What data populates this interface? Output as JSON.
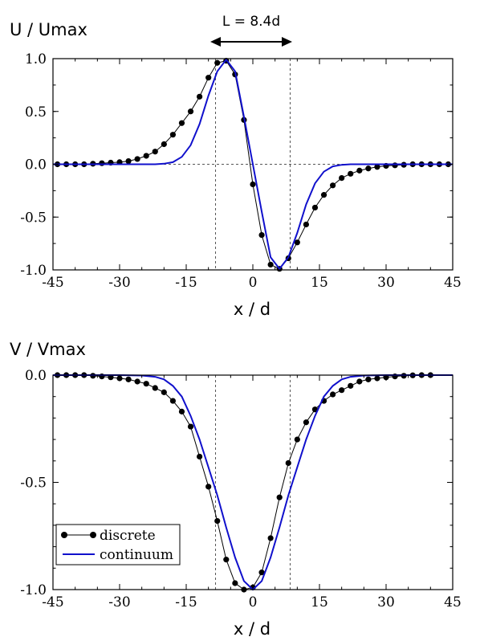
{
  "chart_data": [
    {
      "type": "line",
      "ylabel": "U / Umax",
      "xlabel": "x / d",
      "xlim": [
        -45,
        45
      ],
      "ylim": [
        -1.0,
        1.0
      ],
      "xticks": [
        "-45",
        "-30",
        "-15",
        "0",
        "15",
        "30",
        "45"
      ],
      "yticks": [
        "1.0",
        "0.5",
        "0.0",
        "-0.5",
        "-1.0"
      ],
      "annotation": "L = 8.4d",
      "dashed_verticals": [
        -8.4,
        8.4
      ],
      "zero_line": true,
      "series": [
        {
          "name": "discrete",
          "color": "#000000",
          "marker": "circle",
          "x": [
            -44,
            -42,
            -40,
            -38,
            -36,
            -34,
            -32,
            -30,
            -28,
            -26,
            -24,
            -22,
            -20,
            -18,
            -16,
            -14,
            -12,
            -10,
            -8,
            -6,
            -4,
            -2,
            0,
            2,
            4,
            6,
            8,
            10,
            12,
            14,
            16,
            18,
            20,
            22,
            24,
            26,
            28,
            30,
            32,
            34,
            36,
            38,
            40,
            42,
            44
          ],
          "y": [
            0.0,
            0.0,
            0.0,
            0.0,
            0.005,
            0.01,
            0.015,
            0.02,
            0.03,
            0.05,
            0.08,
            0.12,
            0.19,
            0.28,
            0.39,
            0.5,
            0.64,
            0.82,
            0.96,
            0.98,
            0.85,
            0.42,
            -0.19,
            -0.67,
            -0.95,
            -0.99,
            -0.89,
            -0.74,
            -0.57,
            -0.41,
            -0.29,
            -0.2,
            -0.13,
            -0.09,
            -0.06,
            -0.04,
            -0.025,
            -0.015,
            -0.01,
            -0.005,
            0.0,
            0.0,
            0.0,
            0.0,
            0.0
          ]
        },
        {
          "name": "continuum",
          "color": "#1010cc",
          "marker": "none",
          "x": [
            -45,
            -30,
            -22,
            -20,
            -18,
            -16,
            -14,
            -12,
            -10,
            -8,
            -6,
            -4,
            -2,
            0,
            2,
            4,
            6,
            8,
            10,
            12,
            14,
            16,
            18,
            20,
            22,
            30,
            45
          ],
          "y": [
            0.0,
            0.0,
            0.0,
            0.005,
            0.02,
            0.07,
            0.18,
            0.38,
            0.65,
            0.88,
            0.99,
            0.88,
            0.45,
            0.0,
            -0.45,
            -0.88,
            -0.99,
            -0.88,
            -0.65,
            -0.38,
            -0.18,
            -0.07,
            -0.02,
            -0.005,
            0.0,
            0.0,
            0.0
          ]
        }
      ]
    },
    {
      "type": "line",
      "ylabel": "V / Vmax",
      "xlabel": "x / d",
      "xlim": [
        -45,
        45
      ],
      "ylim": [
        -1.0,
        0.0
      ],
      "xticks": [
        "-45",
        "-30",
        "-15",
        "0",
        "15",
        "30",
        "45"
      ],
      "yticks": [
        "0.0",
        "-0.5",
        "-1.0"
      ],
      "dashed_verticals": [
        -8.4,
        8.4
      ],
      "legend": "bottom-left",
      "series": [
        {
          "name": "discrete",
          "color": "#000000",
          "marker": "circle",
          "x": [
            -44,
            -42,
            -40,
            -38,
            -36,
            -34,
            -32,
            -30,
            -28,
            -26,
            -24,
            -22,
            -20,
            -18,
            -16,
            -14,
            -12,
            -10,
            -8,
            -6,
            -4,
            -2,
            0,
            2,
            4,
            6,
            8,
            10,
            12,
            14,
            16,
            18,
            20,
            22,
            24,
            26,
            28,
            30,
            32,
            34,
            36,
            38,
            40
          ],
          "y": [
            0.0,
            0.0,
            0.0,
            0.0,
            -0.003,
            -0.006,
            -0.01,
            -0.015,
            -0.02,
            -0.03,
            -0.04,
            -0.06,
            -0.08,
            -0.12,
            -0.17,
            -0.24,
            -0.38,
            -0.52,
            -0.68,
            -0.86,
            -0.97,
            -1.0,
            -0.99,
            -0.92,
            -0.76,
            -0.57,
            -0.41,
            -0.3,
            -0.22,
            -0.16,
            -0.12,
            -0.09,
            -0.07,
            -0.05,
            -0.03,
            -0.02,
            -0.015,
            -0.01,
            -0.006,
            -0.003,
            -0.001,
            0.0,
            0.0
          ]
        },
        {
          "name": "continuum",
          "color": "#1010cc",
          "marker": "none",
          "x": [
            -45,
            -30,
            -25,
            -22,
            -20,
            -18,
            -16,
            -14,
            -12,
            -10,
            -8,
            -6,
            -4,
            -2,
            0,
            2,
            4,
            6,
            8,
            10,
            12,
            14,
            16,
            18,
            20,
            22,
            25,
            30,
            45
          ],
          "y": [
            0.0,
            0.0,
            -0.002,
            -0.008,
            -0.02,
            -0.05,
            -0.1,
            -0.19,
            -0.3,
            -0.43,
            -0.56,
            -0.71,
            -0.85,
            -0.96,
            -1.0,
            -0.96,
            -0.85,
            -0.71,
            -0.56,
            -0.43,
            -0.3,
            -0.19,
            -0.1,
            -0.05,
            -0.02,
            -0.008,
            -0.002,
            0.0,
            0.0
          ]
        }
      ]
    }
  ]
}
